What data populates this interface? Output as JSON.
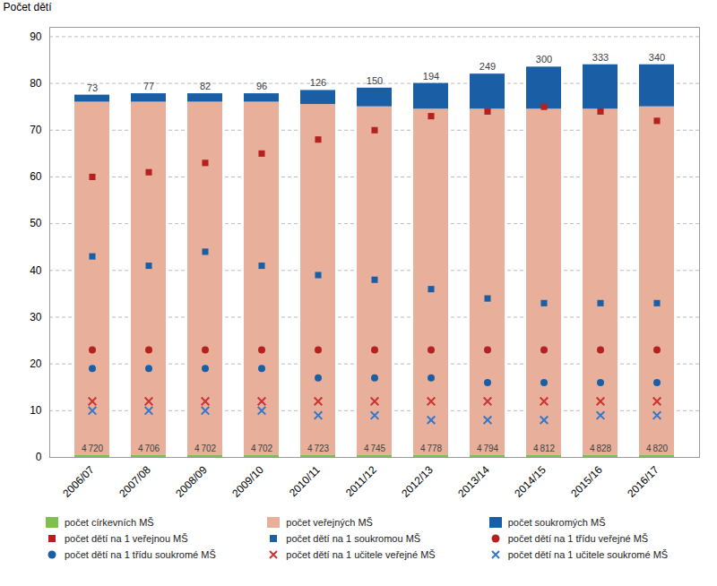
{
  "chart_data": {
    "type": "bar",
    "stacked": true,
    "categories": [
      "2006/07",
      "2007/08",
      "2008/09",
      "2009/10",
      "2010/11",
      "2011/12",
      "2012/13",
      "2013/14",
      "2014/15",
      "2015/16",
      "2016/17"
    ],
    "ylabel": "Počet dětí",
    "ylim": [
      0,
      92
    ],
    "yticks": [
      0,
      10,
      20,
      30,
      40,
      50,
      60,
      70,
      80,
      90
    ],
    "grid": true,
    "series": [
      {
        "name": "počet církevních MŠ",
        "type": "bar",
        "color": "#7DC050",
        "values": [
          0.5,
          0.5,
          0.5,
          0.5,
          0.5,
          0.5,
          0.5,
          0.5,
          0.5,
          0.5,
          0.5
        ]
      },
      {
        "name": "počet veřejných MŠ",
        "type": "bar",
        "color": "#E8B09A",
        "values": [
          75.5,
          75.5,
          75.5,
          75.5,
          75.0,
          74.5,
          74.0,
          74.0,
          74.0,
          74.0,
          74.5
        ],
        "counts": [
          4720,
          4706,
          4702,
          4702,
          4723,
          4745,
          4778,
          4794,
          4812,
          4828,
          4820
        ],
        "count_labels": [
          "4 720",
          "4 706",
          "4 702",
          "4 702",
          "4 723",
          "4 745",
          "4 778",
          "4 794",
          "4 812",
          "4 828",
          "4 820"
        ]
      },
      {
        "name": "počet soukromých MŠ",
        "type": "bar",
        "color": "#1A5FA6",
        "values": [
          1.5,
          1.8,
          1.8,
          1.8,
          3.0,
          4.0,
          5.5,
          7.5,
          9.0,
          9.5,
          9.0
        ],
        "counts": [
          73,
          77,
          82,
          96,
          126,
          150,
          194,
          249,
          300,
          333,
          340
        ]
      },
      {
        "name": "počet dětí na 1 veřejnou MŠ",
        "type": "scatter",
        "marker": "square",
        "color": "#B52020",
        "values": [
          60,
          61,
          63,
          65,
          68,
          70,
          73,
          74,
          75,
          74,
          72
        ]
      },
      {
        "name": "počet dětí na 1 soukromou MŠ",
        "type": "scatter",
        "marker": "square",
        "color": "#1A5FA6",
        "values": [
          43,
          41,
          44,
          41,
          39,
          38,
          36,
          34,
          33,
          33,
          33
        ]
      },
      {
        "name": "počet dětí na 1 třídu veřejné MŠ",
        "type": "scatter",
        "marker": "circle",
        "color": "#B52020",
        "values": [
          23,
          23,
          23,
          23,
          23,
          23,
          23,
          23,
          23,
          23,
          23
        ]
      },
      {
        "name": "počet dětí na 1 třídu soukromé MŠ",
        "type": "scatter",
        "marker": "circle",
        "color": "#1A5FA6",
        "values": [
          19,
          19,
          19,
          19,
          17,
          17,
          17,
          16,
          16,
          16,
          16
        ]
      },
      {
        "name": "počet dětí na 1 učitele veřejné MŠ",
        "type": "scatter",
        "marker": "x",
        "color": "#CC3333",
        "values": [
          12,
          12,
          12,
          12,
          12,
          12,
          12,
          12,
          12,
          12,
          12
        ]
      },
      {
        "name": "počet dětí na 1 učitele soukromé MŠ",
        "type": "scatter",
        "marker": "x",
        "color": "#3377CC",
        "values": [
          10,
          10,
          10,
          10,
          9,
          9,
          8,
          8,
          8,
          9,
          9
        ]
      }
    ]
  }
}
